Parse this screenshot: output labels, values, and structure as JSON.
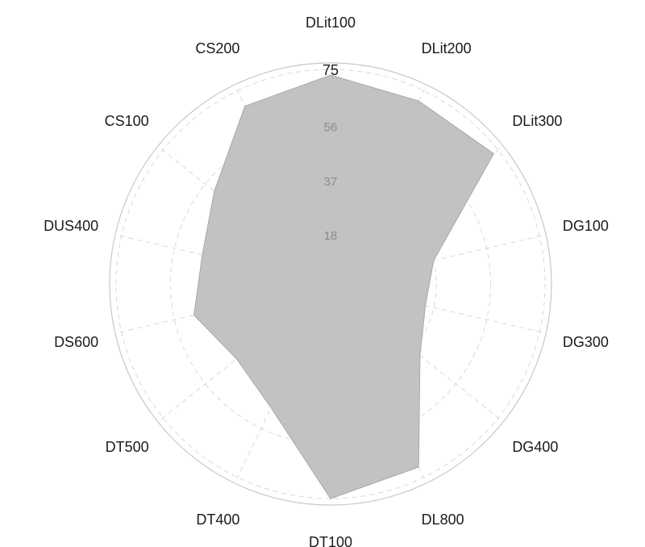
{
  "chart_data": {
    "type": "radar",
    "categories": [
      "DLit100",
      "DLit200",
      "DLit300",
      "DG100",
      "DG300",
      "DG400",
      "DL800",
      "DT100",
      "DT400",
      "DT500",
      "DS600",
      "DUS400",
      "CS100",
      "CS200"
    ],
    "series": [
      {
        "values": [
          73,
          71,
          73,
          37,
          34,
          40,
          71,
          75,
          48,
          42,
          49,
          46,
          52,
          69
        ]
      }
    ],
    "r_ticks": [
      18,
      37,
      56,
      75
    ],
    "rlim": [
      0,
      75
    ],
    "grid": true,
    "colors": {
      "fill": "#bdbdbd",
      "ring": "#d9d9d9",
      "text": "#1a1a1a",
      "tick": "#8c8c8c"
    }
  }
}
